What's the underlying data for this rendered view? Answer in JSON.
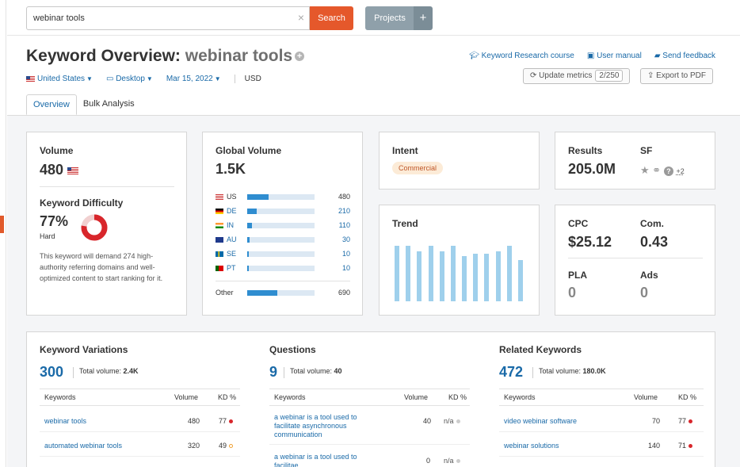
{
  "search": {
    "value": "webinar tools",
    "button": "Search"
  },
  "projects": {
    "label": "Projects",
    "plus": "+"
  },
  "title": {
    "prefix": "Keyword Overview:",
    "keyword": "webinar tools"
  },
  "links": {
    "course": "Keyword Research course",
    "manual": "User manual",
    "feedback": "Send feedback"
  },
  "filters": {
    "country": "United States",
    "device": "Desktop",
    "date": "Mar 15, 2022",
    "currency": "USD"
  },
  "buttons": {
    "update": "Update metrics",
    "update_count": "2/250",
    "export": "Export to PDF"
  },
  "tabs": [
    "Overview",
    "Bulk Analysis"
  ],
  "volume": {
    "label": "Volume",
    "value": "480"
  },
  "kd": {
    "label": "Keyword Difficulty",
    "value": "77%",
    "level": "Hard",
    "percent": 77,
    "description": "This keyword will demand 274 high-authority referring domains and well-optimized content to start ranking for it."
  },
  "global_volume": {
    "label": "Global Volume",
    "value": "1.5K",
    "countries": [
      {
        "code": "US",
        "value": "480",
        "share": 0.32
      },
      {
        "code": "DE",
        "value": "210",
        "share": 0.14
      },
      {
        "code": "IN",
        "value": "110",
        "share": 0.07
      },
      {
        "code": "AU",
        "value": "30",
        "share": 0.03
      },
      {
        "code": "SE",
        "value": "10",
        "share": 0.02
      },
      {
        "code": "PT",
        "value": "10",
        "share": 0.02
      }
    ],
    "other_label": "Other",
    "other_value": "690",
    "other_share": 0.45
  },
  "intent": {
    "label": "Intent",
    "badge": "Commercial"
  },
  "results": {
    "label": "Results",
    "value": "205.0M",
    "sf_label": "SF",
    "sf_more": "+2"
  },
  "trend": {
    "label": "Trend",
    "values": [
      1.0,
      1.0,
      0.9,
      1.0,
      0.9,
      1.0,
      0.82,
      0.86,
      0.86,
      0.9,
      1.0,
      0.75
    ]
  },
  "cpc": {
    "label": "CPC",
    "value": "$25.12",
    "com_label": "Com.",
    "com_value": "0.43",
    "pla_label": "PLA",
    "pla_value": "0",
    "ads_label": "Ads",
    "ads_value": "0"
  },
  "variations": {
    "label": "Keyword Variations",
    "count": "300",
    "total_label": "Total volume:",
    "total": "2.4K",
    "headers": [
      "Keywords",
      "Volume",
      "KD %"
    ],
    "rows": [
      {
        "keyword": "webinar tools",
        "volume": "480",
        "kd": "77"
      },
      {
        "keyword": "automated webinar tools",
        "volume": "320",
        "kd": "49"
      }
    ]
  },
  "questions": {
    "label": "Questions",
    "count": "9",
    "total_label": "Total volume:",
    "total": "40",
    "headers": [
      "Keywords",
      "Volume",
      "KD %"
    ],
    "rows": [
      {
        "keyword": "a webinar is a tool used to facilitate asynchronous communication",
        "volume": "40",
        "kd": "n/a"
      },
      {
        "keyword": "a webinar is a tool used to facilitae",
        "volume": "0",
        "kd": "n/a"
      }
    ]
  },
  "related": {
    "label": "Related Keywords",
    "count": "472",
    "total_label": "Total volume:",
    "total": "180.0K",
    "headers": [
      "Keywords",
      "Volume",
      "KD %"
    ],
    "rows": [
      {
        "keyword": "video webinar software",
        "volume": "70",
        "kd": "77"
      },
      {
        "keyword": "webinar solutions",
        "volume": "140",
        "kd": "71"
      }
    ]
  },
  "colors": {
    "accent": "#e5582b",
    "link": "#1a6aa8",
    "kd_red": "#d8262b",
    "bar": "#2f8dd0",
    "trend": "#9fd0ec"
  }
}
